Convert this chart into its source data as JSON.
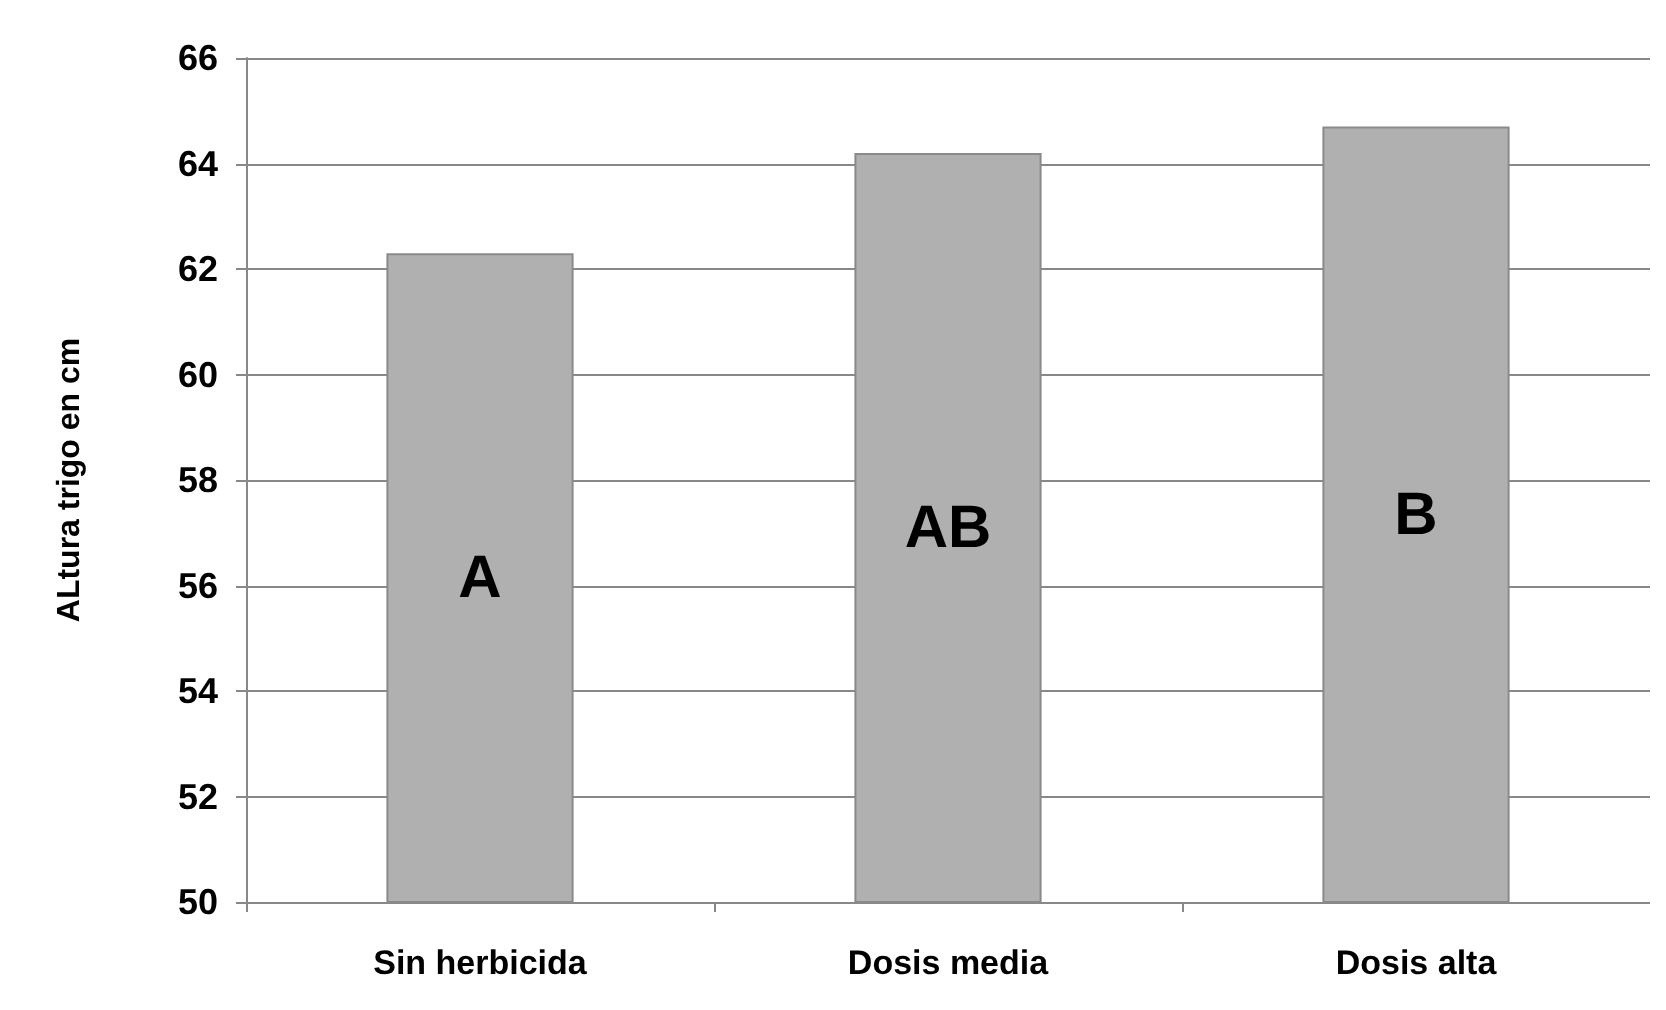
{
  "chart_data": {
    "type": "bar",
    "ylabel": "ALtura trigo en cm",
    "categories": [
      "Sin herbicida",
      "Dosis media",
      "Dosis alta"
    ],
    "values": [
      62.3,
      64.2,
      64.7
    ],
    "color": "#b0b0b0",
    "ylim": [
      50,
      66
    ],
    "yticks": [
      50,
      52,
      54,
      56,
      58,
      60,
      62,
      64,
      66
    ],
    "grid": "y",
    "annotations": [
      "A",
      "AB",
      "B"
    ]
  }
}
